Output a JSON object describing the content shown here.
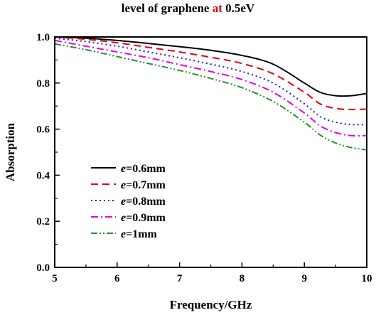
{
  "title": {
    "part1": "level of graphene ",
    "part2": "at",
    "part3": " 0.5eV",
    "accent_color": "#e8000b"
  },
  "chart_data": {
    "type": "line",
    "xlabel": "Frequency/GHz",
    "ylabel": "Absorption",
    "xlim": [
      5,
      10
    ],
    "ylim": [
      0.0,
      1.0
    ],
    "xticks": [
      "5",
      "6",
      "7",
      "8",
      "9",
      "10"
    ],
    "yticks": [
      "0.0",
      "0.2",
      "0.4",
      "0.6",
      "0.8",
      "1.0"
    ],
    "legend_position": "center-left",
    "grid": false,
    "x": [
      5.0,
      5.5,
      6.0,
      6.5,
      7.0,
      7.5,
      8.0,
      8.5,
      9.0,
      9.25,
      9.5,
      9.75,
      10.0
    ],
    "series": [
      {
        "name": "e=0.6mm",
        "label_var": "e",
        "label_rest": "=0.6mm",
        "color": "#000000",
        "dash": "solid",
        "values": [
          1.0,
          0.995,
          0.985,
          0.972,
          0.958,
          0.942,
          0.92,
          0.882,
          0.8,
          0.76,
          0.745,
          0.745,
          0.755
        ]
      },
      {
        "name": "e=0.7mm",
        "label_var": "e",
        "label_rest": "=0.7mm",
        "color": "#e8000b",
        "dash": "dashed",
        "values": [
          1.0,
          0.99,
          0.975,
          0.955,
          0.935,
          0.912,
          0.885,
          0.84,
          0.76,
          0.71,
          0.69,
          0.685,
          0.687
        ]
      },
      {
        "name": "e=0.8mm",
        "label_var": "e",
        "label_rest": "=0.8mm",
        "color": "#1a1ae6",
        "dash": "dotted",
        "values": [
          0.995,
          0.98,
          0.96,
          0.935,
          0.91,
          0.882,
          0.85,
          0.8,
          0.71,
          0.655,
          0.63,
          0.62,
          0.62
        ]
      },
      {
        "name": "e=0.9mm",
        "label_var": "e",
        "label_rest": "=0.9mm",
        "color": "#e600e6",
        "dash": "dashdot",
        "values": [
          0.985,
          0.96,
          0.935,
          0.91,
          0.88,
          0.85,
          0.815,
          0.76,
          0.67,
          0.615,
          0.585,
          0.572,
          0.572
        ]
      },
      {
        "name": "e=1mm",
        "label_var": "e",
        "label_rest": "=1mm",
        "color": "#2e8b2e",
        "dash": "dashdotdot",
        "values": [
          0.97,
          0.945,
          0.915,
          0.885,
          0.855,
          0.82,
          0.78,
          0.72,
          0.63,
          0.575,
          0.54,
          0.52,
          0.51
        ]
      }
    ]
  }
}
